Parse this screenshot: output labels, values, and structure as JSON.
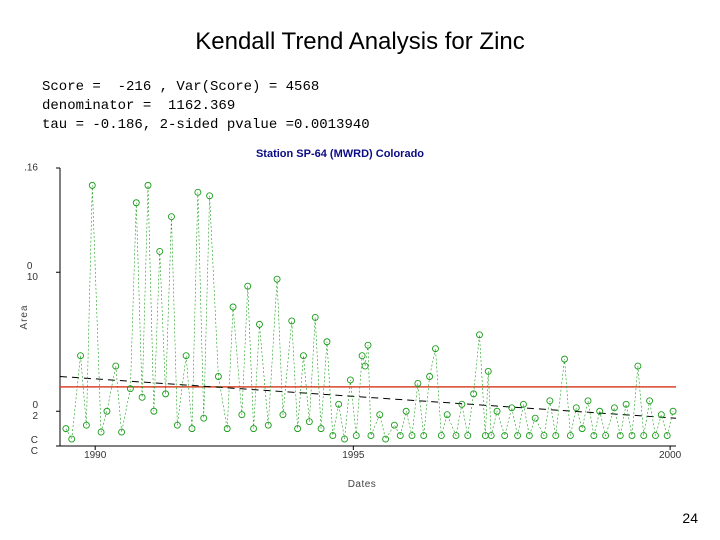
{
  "title": "Kendall Trend Analysis for Zinc",
  "stats_line1": "Score =  -216 , Var(Score) = 4568",
  "stats_line2": "denominator =  1162.369",
  "stats_line3": "tau = -0.186, 2-sided pvalue =0.0013940",
  "page_number": "24",
  "chart": {
    "type": "line-scatter",
    "title": "Station SP-64 (MWRD) Colorado",
    "title_color": "#0b0b85",
    "title_fontsize": 11,
    "title_fontweight": "bold",
    "xlabel": "Dates",
    "ylabel": "Area",
    "label_fontsize": 10,
    "label_color": "#444444",
    "background": "#ffffff",
    "axis_color": "#000000",
    "xlim": [
      1990,
      2000.5
    ],
    "ylim": [
      0,
      0.16
    ],
    "yticks": [
      0.0,
      0.02,
      0.1,
      0.16
    ],
    "ytick_labels": [
      "C C",
      "0 2",
      "0 10",
      ".16"
    ],
    "xticks": [
      1990.6,
      1995,
      2000.4
    ],
    "xtick_labels": [
      "1990",
      "1995",
      "2000"
    ],
    "hline": {
      "y": 0.034,
      "color": "#d8462a",
      "width": 1.5
    },
    "trend_line": {
      "color": "#000000",
      "width": 1,
      "dash": "7,5",
      "points": [
        [
          1990,
          0.04
        ],
        [
          2000.5,
          0.016
        ]
      ]
    },
    "series": {
      "color": "#1a9c1a",
      "marker": "circle-open",
      "marker_size": 3,
      "line_width": 0.6,
      "line_dash": "2,2",
      "data": [
        [
          1990.1,
          0.01
        ],
        [
          1990.2,
          0.004
        ],
        [
          1990.35,
          0.052
        ],
        [
          1990.45,
          0.012
        ],
        [
          1990.55,
          0.15
        ],
        [
          1990.7,
          0.008
        ],
        [
          1990.8,
          0.02
        ],
        [
          1990.95,
          0.046
        ],
        [
          1991.05,
          0.008
        ],
        [
          1991.2,
          0.033
        ],
        [
          1991.3,
          0.14
        ],
        [
          1991.4,
          0.028
        ],
        [
          1991.5,
          0.15
        ],
        [
          1991.6,
          0.02
        ],
        [
          1991.7,
          0.112
        ],
        [
          1991.8,
          0.03
        ],
        [
          1991.9,
          0.132
        ],
        [
          1992.0,
          0.012
        ],
        [
          1992.15,
          0.052
        ],
        [
          1992.25,
          0.01
        ],
        [
          1992.35,
          0.146
        ],
        [
          1992.45,
          0.016
        ],
        [
          1992.55,
          0.144
        ],
        [
          1992.7,
          0.04
        ],
        [
          1992.85,
          0.01
        ],
        [
          1992.95,
          0.08
        ],
        [
          1993.1,
          0.018
        ],
        [
          1993.2,
          0.092
        ],
        [
          1993.3,
          0.01
        ],
        [
          1993.4,
          0.07
        ],
        [
          1993.55,
          0.012
        ],
        [
          1993.7,
          0.096
        ],
        [
          1993.8,
          0.018
        ],
        [
          1993.95,
          0.072
        ],
        [
          1994.05,
          0.01
        ],
        [
          1994.15,
          0.052
        ],
        [
          1994.25,
          0.014
        ],
        [
          1994.35,
          0.074
        ],
        [
          1994.45,
          0.01
        ],
        [
          1994.55,
          0.06
        ],
        [
          1994.65,
          0.006
        ],
        [
          1994.75,
          0.024
        ],
        [
          1994.85,
          0.004
        ],
        [
          1994.95,
          0.038
        ],
        [
          1995.05,
          0.006
        ],
        [
          1995.15,
          0.052
        ],
        [
          1995.2,
          0.046
        ],
        [
          1995.25,
          0.058
        ],
        [
          1995.3,
          0.006
        ],
        [
          1995.45,
          0.018
        ],
        [
          1995.55,
          0.004
        ],
        [
          1995.7,
          0.012
        ],
        [
          1995.8,
          0.006
        ],
        [
          1995.9,
          0.02
        ],
        [
          1996.0,
          0.006
        ],
        [
          1996.1,
          0.036
        ],
        [
          1996.2,
          0.006
        ],
        [
          1996.3,
          0.04
        ],
        [
          1996.4,
          0.056
        ],
        [
          1996.5,
          0.006
        ],
        [
          1996.6,
          0.018
        ],
        [
          1996.75,
          0.006
        ],
        [
          1996.85,
          0.024
        ],
        [
          1996.95,
          0.006
        ],
        [
          1997.05,
          0.03
        ],
        [
          1997.15,
          0.064
        ],
        [
          1997.25,
          0.006
        ],
        [
          1997.3,
          0.043
        ],
        [
          1997.35,
          0.006
        ],
        [
          1997.45,
          0.02
        ],
        [
          1997.58,
          0.006
        ],
        [
          1997.7,
          0.022
        ],
        [
          1997.8,
          0.006
        ],
        [
          1997.9,
          0.024
        ],
        [
          1998.0,
          0.006
        ],
        [
          1998.1,
          0.016
        ],
        [
          1998.25,
          0.006
        ],
        [
          1998.35,
          0.026
        ],
        [
          1998.45,
          0.006
        ],
        [
          1998.6,
          0.05
        ],
        [
          1998.7,
          0.006
        ],
        [
          1998.8,
          0.022
        ],
        [
          1998.9,
          0.01
        ],
        [
          1999.0,
          0.026
        ],
        [
          1999.1,
          0.006
        ],
        [
          1999.2,
          0.02
        ],
        [
          1999.3,
          0.006
        ],
        [
          1999.45,
          0.022
        ],
        [
          1999.55,
          0.006
        ],
        [
          1999.65,
          0.024
        ],
        [
          1999.75,
          0.006
        ],
        [
          1999.85,
          0.046
        ],
        [
          1999.95,
          0.006
        ],
        [
          2000.05,
          0.026
        ],
        [
          2000.15,
          0.006
        ],
        [
          2000.25,
          0.018
        ],
        [
          2000.35,
          0.006
        ],
        [
          2000.45,
          0.02
        ]
      ]
    }
  }
}
